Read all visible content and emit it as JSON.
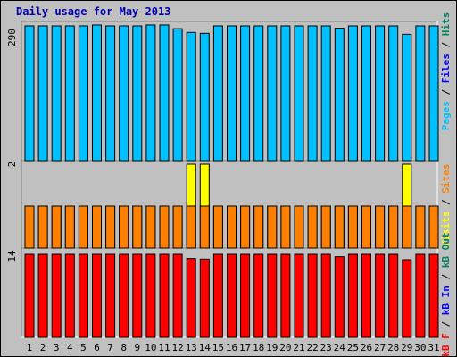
{
  "title": "Daily usage for May 2013",
  "colors": {
    "hits": "#00805c",
    "files": "#0000ff",
    "pages": "#00c0ff",
    "visits": "#ffff00",
    "sites": "#ff8000",
    "kb_f": "#ff0000",
    "kb_in": "#0000ff",
    "kb_out": "#00805c",
    "slash": "#000000",
    "weekend": "#00805c"
  },
  "chart_data": [
    {
      "type": "bar",
      "panel": "top",
      "ymax_label": "290",
      "ylim": [
        0,
        290
      ],
      "legend": [
        "Pages",
        "Files",
        "Hits"
      ],
      "categories": [
        "1",
        "2",
        "3",
        "4",
        "5",
        "6",
        "7",
        "8",
        "9",
        "10",
        "11",
        "12",
        "13",
        "14",
        "15",
        "16",
        "17",
        "18",
        "19",
        "20",
        "21",
        "22",
        "23",
        "24",
        "25",
        "26",
        "27",
        "28",
        "29",
        "30",
        "31"
      ],
      "weekend_days": [
        "4",
        "5",
        "11",
        "12",
        "18",
        "19",
        "25",
        "26"
      ],
      "series": [
        {
          "name": "Pages",
          "values": [
            290,
            290,
            290,
            290,
            290,
            292,
            290,
            290,
            290,
            292,
            292,
            284,
            276,
            274,
            290,
            290,
            290,
            290,
            290,
            290,
            290,
            290,
            290,
            285,
            290,
            290,
            290,
            290,
            272,
            290,
            290
          ]
        }
      ]
    },
    {
      "type": "bar",
      "panel": "middle",
      "ymax_label": "2",
      "ylim": [
        0,
        2
      ],
      "legend": [
        "Visits",
        "Sites"
      ],
      "series": [
        {
          "name": "Visits",
          "values": [
            1,
            1,
            1,
            1,
            1,
            1,
            1,
            1,
            1,
            1,
            1,
            1,
            2,
            2,
            1,
            1,
            1,
            1,
            1,
            1,
            1,
            1,
            1,
            1,
            1,
            1,
            1,
            1,
            2,
            1,
            1
          ]
        },
        {
          "name": "Sites",
          "values": [
            1,
            1,
            1,
            1,
            1,
            1,
            1,
            1,
            1,
            1,
            1,
            1,
            1,
            1,
            1,
            1,
            1,
            1,
            1,
            1,
            1,
            1,
            1,
            1,
            1,
            1,
            1,
            1,
            1,
            1,
            1
          ]
        }
      ]
    },
    {
      "type": "bar",
      "panel": "bottom",
      "ymax_label": "14",
      "ylim": [
        0,
        14
      ],
      "legend": [
        "kB F",
        "kB In",
        "kB Out"
      ],
      "series": [
        {
          "name": "kB F",
          "values": [
            14,
            14,
            14,
            14,
            14,
            14,
            14,
            14,
            14,
            14,
            14,
            14,
            13.3,
            13.2,
            14,
            14,
            14,
            14,
            14,
            14,
            14,
            14,
            14,
            13.6,
            14,
            14,
            14,
            14,
            13.1,
            14,
            14
          ]
        }
      ]
    }
  ]
}
